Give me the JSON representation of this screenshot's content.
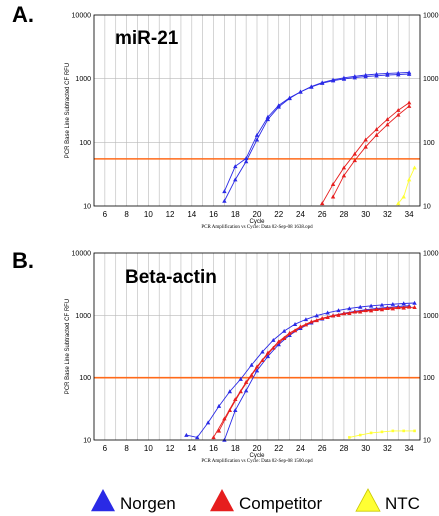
{
  "chart_data": [
    {
      "type": "line",
      "panel_label": "A.",
      "target_label": "miR-21",
      "ylabel": "PCR Base Line Subtracted CF RFU",
      "xlabel": "Cycle",
      "caption": "PCR Amplification vs Cycle: Data 02-Sep-08 1638.opd",
      "xlim": [
        5,
        35
      ],
      "ylim": [
        10,
        10000
      ],
      "yscale": "log",
      "grid": true,
      "x_ticks": [
        "6",
        "8",
        "10",
        "12",
        "14",
        "16",
        "18",
        "20",
        "22",
        "24",
        "26",
        "28",
        "30",
        "32",
        "34"
      ],
      "y_ticks": [
        "10",
        "100",
        "1000",
        "10000"
      ],
      "threshold": 55,
      "series": [
        {
          "group": "Norgen",
          "color": "#2a2ae6",
          "marker": "triangle",
          "x": [
            16,
            17,
            18,
            19,
            20,
            21,
            22,
            23,
            24,
            25,
            26,
            27,
            28,
            29,
            30,
            31,
            32,
            33,
            34
          ],
          "y": [
            9,
            17,
            42,
            56,
            130,
            250,
            380,
            500,
            620,
            740,
            850,
            930,
            990,
            1040,
            1080,
            1110,
            1140,
            1160,
            1180
          ]
        },
        {
          "group": "Norgen",
          "color": "#2a2ae6",
          "marker": "triangle",
          "x": [
            17,
            18,
            19,
            20,
            21,
            22,
            23,
            24,
            25,
            26,
            27,
            28,
            29,
            30,
            31,
            32,
            33,
            34
          ],
          "y": [
            12,
            26,
            50,
            110,
            230,
            360,
            490,
            620,
            750,
            870,
            960,
            1030,
            1090,
            1140,
            1180,
            1210,
            1230,
            1250
          ]
        },
        {
          "group": "Competitor",
          "color": "#e61e1e",
          "marker": "triangle",
          "x": [
            26,
            27,
            28,
            29,
            30,
            31,
            32,
            33,
            34
          ],
          "y": [
            11,
            22,
            40,
            66,
            110,
            160,
            230,
            320,
            420
          ]
        },
        {
          "group": "Competitor",
          "color": "#e61e1e",
          "marker": "triangle",
          "x": [
            27,
            28,
            29,
            30,
            31,
            32,
            33,
            34
          ],
          "y": [
            14,
            30,
            52,
            85,
            130,
            190,
            270,
            370
          ]
        },
        {
          "group": "NTC",
          "color": "#ffff33",
          "marker": "triangle",
          "x": [
            33,
            33.5,
            34,
            34.5
          ],
          "y": [
            11,
            14,
            26,
            40
          ]
        }
      ]
    },
    {
      "type": "line",
      "panel_label": "B.",
      "target_label": "Beta-actin",
      "ylabel": "PCR Base Line Subtracted CF RFU",
      "xlabel": "Cycle",
      "caption": "PCR Amplification vs Cycle: Data 02-Sep-08 1500.opd",
      "xlim": [
        5,
        35
      ],
      "ylim": [
        10,
        10000
      ],
      "yscale": "log",
      "grid": true,
      "x_ticks": [
        "6",
        "8",
        "10",
        "12",
        "14",
        "16",
        "18",
        "20",
        "22",
        "24",
        "26",
        "28",
        "30",
        "32",
        "34"
      ],
      "y_ticks": [
        "10",
        "100",
        "1000",
        "10000"
      ],
      "threshold": 100,
      "series": [
        {
          "group": "Norgen",
          "color": "#2a2ae6",
          "marker": "triangle",
          "x": [
            13.5,
            14.5,
            15.5,
            16.5,
            17.5,
            18.5,
            19.5,
            20.5,
            21.5,
            22.5,
            23.5,
            24.5,
            25.5,
            26.5,
            27.5,
            28.5,
            29.5,
            30.5,
            31.5,
            32.5,
            33.5,
            34.5
          ],
          "y": [
            12,
            11,
            19,
            35,
            60,
            95,
            160,
            260,
            400,
            560,
            720,
            860,
            990,
            1100,
            1200,
            1290,
            1360,
            1420,
            1470,
            1510,
            1550,
            1580
          ]
        },
        {
          "group": "Norgen",
          "color": "#2a2ae6",
          "marker": "triangle",
          "x": [
            17,
            18,
            19,
            20,
            21,
            22,
            23,
            24,
            25,
            26,
            27,
            28,
            29,
            30,
            31,
            32,
            33,
            34
          ],
          "y": [
            10,
            30,
            62,
            130,
            220,
            340,
            480,
            620,
            760,
            880,
            990,
            1080,
            1160,
            1230,
            1290,
            1340,
            1390,
            1430
          ]
        },
        {
          "group": "Competitor",
          "color": "#e61e1e",
          "marker": "triangle",
          "x": [
            16,
            17,
            18,
            19,
            20,
            21,
            22,
            23,
            24,
            25,
            26,
            27,
            28,
            29,
            30,
            31,
            32,
            33,
            34
          ],
          "y": [
            11,
            22,
            45,
            85,
            150,
            250,
            380,
            520,
            660,
            790,
            900,
            990,
            1070,
            1140,
            1200,
            1250,
            1300,
            1340,
            1370
          ]
        },
        {
          "group": "Competitor",
          "color": "#e61e1e",
          "marker": "triangle",
          "x": [
            16.5,
            17.5,
            18.5,
            19.5,
            20.5,
            21.5,
            22.5,
            23.5,
            24.5,
            25.5,
            26.5,
            27.5,
            28.5,
            29.5,
            30.5,
            31.5,
            32.5,
            33.5,
            34.5
          ],
          "y": [
            14,
            30,
            60,
            110,
            190,
            300,
            430,
            570,
            710,
            830,
            930,
            1010,
            1080,
            1140,
            1190,
            1240,
            1280,
            1320,
            1350
          ]
        },
        {
          "group": "NTC",
          "color": "#ffff33",
          "marker": "square",
          "x": [
            28.5,
            29.5,
            30.5,
            31.5,
            32.5,
            33.5,
            34.5
          ],
          "y": [
            11,
            12,
            13,
            13.5,
            14,
            14,
            14
          ]
        }
      ]
    }
  ],
  "legend": [
    {
      "label": "Norgen",
      "color": "#2a2ae6"
    },
    {
      "label": "Competitor",
      "color": "#e61e1e"
    },
    {
      "label": "NTC",
      "color": "#ffff33"
    }
  ],
  "style": {
    "threshold_color": "#ff6a1a",
    "grid_color": "#b9b9b9",
    "legend_stroke": "#c9c900"
  }
}
